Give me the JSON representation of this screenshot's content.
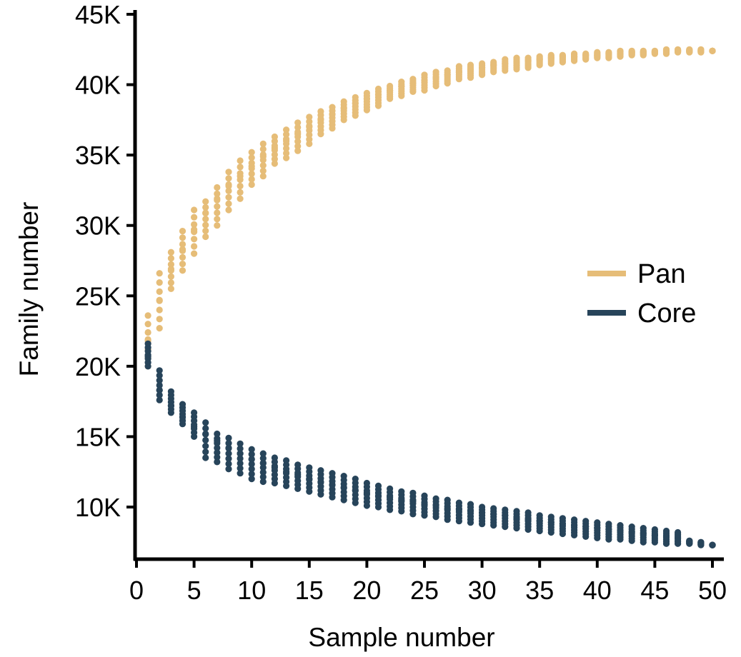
{
  "chart_data": {
    "type": "scatter",
    "title": "",
    "xlabel": "Sample number",
    "ylabel": "Family number",
    "xlim": [
      0,
      50
    ],
    "ylim": [
      6500,
      45000
    ],
    "xticks": [
      0,
      5,
      10,
      15,
      20,
      25,
      30,
      35,
      40,
      45,
      50
    ],
    "xtick_labels": [
      "0",
      "5",
      "10",
      "15",
      "20",
      "25",
      "30",
      "35",
      "40",
      "45",
      "50"
    ],
    "yticks": [
      10000,
      15000,
      20000,
      25000,
      30000,
      35000,
      40000,
      45000
    ],
    "ytick_labels": [
      "10K",
      "15K",
      "20K",
      "25K",
      "30K",
      "35K",
      "40K",
      "45K"
    ],
    "grid": false,
    "legend_position": "right",
    "series": [
      {
        "name": "Pan",
        "color": "#e6bd78",
        "x": [
          1,
          2,
          3,
          4,
          5,
          6,
          7,
          8,
          9,
          10,
          11,
          12,
          13,
          14,
          15,
          16,
          17,
          18,
          19,
          20,
          21,
          22,
          23,
          24,
          25,
          26,
          27,
          28,
          29,
          30,
          31,
          32,
          33,
          34,
          35,
          36,
          37,
          38,
          39,
          40,
          41,
          42,
          43,
          44,
          45,
          46,
          47,
          48,
          49,
          50
        ],
        "mean": [
          21900,
          24700,
          26900,
          28300,
          29700,
          30900,
          31900,
          32800,
          33500,
          34200,
          34900,
          35500,
          36000,
          36500,
          37000,
          37500,
          37900,
          38300,
          38700,
          39000,
          39300,
          39600,
          39900,
          40100,
          40300,
          40500,
          40700,
          40900,
          41100,
          41200,
          41400,
          41500,
          41600,
          41700,
          41800,
          41900,
          42000,
          42000,
          42100,
          42100,
          42200,
          42200,
          42300,
          42300,
          42300,
          42400,
          42400,
          42400,
          42400,
          42400
        ],
        "min": [
          20000,
          22700,
          25500,
          26800,
          28000,
          29200,
          30000,
          31100,
          31900,
          32900,
          33500,
          34400,
          34800,
          35300,
          35800,
          36500,
          36900,
          37500,
          37800,
          38200,
          38500,
          39000,
          39200,
          39500,
          39600,
          39900,
          40100,
          40400,
          40500,
          40700,
          40900,
          41000,
          41100,
          41200,
          41400,
          41500,
          41600,
          41700,
          41800,
          41900,
          41900,
          42000,
          42100,
          42100,
          42200,
          42200,
          42300,
          42300,
          42300,
          42400
        ],
        "max": [
          23600,
          26600,
          28100,
          29600,
          31100,
          31700,
          32700,
          33800,
          34600,
          35200,
          35800,
          36300,
          36800,
          37300,
          37700,
          38100,
          38400,
          38800,
          39100,
          39400,
          39700,
          39900,
          40200,
          40400,
          40700,
          40900,
          41000,
          41300,
          41400,
          41500,
          41600,
          41800,
          41900,
          41900,
          42000,
          42100,
          42100,
          42200,
          42200,
          42300,
          42300,
          42400,
          42400,
          42400,
          42400,
          42500,
          42500,
          42500,
          42500,
          42400
        ]
      },
      {
        "name": "Core",
        "color": "#27445a",
        "x": [
          1,
          2,
          3,
          4,
          5,
          6,
          7,
          8,
          9,
          10,
          11,
          12,
          13,
          14,
          15,
          16,
          17,
          18,
          19,
          20,
          21,
          22,
          23,
          24,
          25,
          26,
          27,
          28,
          29,
          30,
          31,
          32,
          33,
          34,
          35,
          36,
          37,
          38,
          39,
          40,
          41,
          42,
          43,
          44,
          45,
          46,
          47,
          48,
          49,
          50
        ],
        "mean": [
          20700,
          18300,
          17200,
          16400,
          15700,
          15200,
          14700,
          14200,
          13800,
          13400,
          13100,
          12800,
          12500,
          12300,
          12000,
          11800,
          11600,
          11400,
          11200,
          11000,
          10800,
          10700,
          10500,
          10400,
          10200,
          10100,
          9900,
          9800,
          9700,
          9600,
          9500,
          9400,
          9200,
          9100,
          9000,
          8900,
          8800,
          8700,
          8600,
          8500,
          8400,
          8300,
          8200,
          8100,
          8000,
          7900,
          7800,
          7600,
          7500,
          7300
        ],
        "min": [
          20000,
          17600,
          16700,
          15900,
          15000,
          13500,
          13200,
          12700,
          12400,
          12000,
          11800,
          11700,
          11500,
          11300,
          11100,
          10900,
          10700,
          10500,
          10300,
          10100,
          10000,
          9800,
          9700,
          9500,
          9400,
          9300,
          9100,
          9000,
          8900,
          8800,
          8700,
          8600,
          8500,
          8400,
          8300,
          8200,
          8100,
          8000,
          7900,
          7800,
          7700,
          7700,
          7600,
          7500,
          7500,
          7400,
          7400,
          7400,
          7300,
          7300
        ],
        "max": [
          21600,
          19700,
          18200,
          17300,
          16700,
          16000,
          15200,
          14900,
          14500,
          14100,
          13800,
          13500,
          13300,
          13000,
          12800,
          12600,
          12400,
          12200,
          12000,
          11700,
          11500,
          11300,
          11100,
          11000,
          10800,
          10600,
          10500,
          10300,
          10200,
          10000,
          9900,
          9800,
          9700,
          9600,
          9400,
          9300,
          9200,
          9100,
          9000,
          8900,
          8800,
          8700,
          8600,
          8500,
          8400,
          8300,
          8200,
          7600,
          7500,
          7300
        ]
      }
    ]
  },
  "legend": {
    "items": [
      {
        "label": "Pan",
        "color": "#e6bd78"
      },
      {
        "label": "Core",
        "color": "#27445a"
      }
    ]
  }
}
